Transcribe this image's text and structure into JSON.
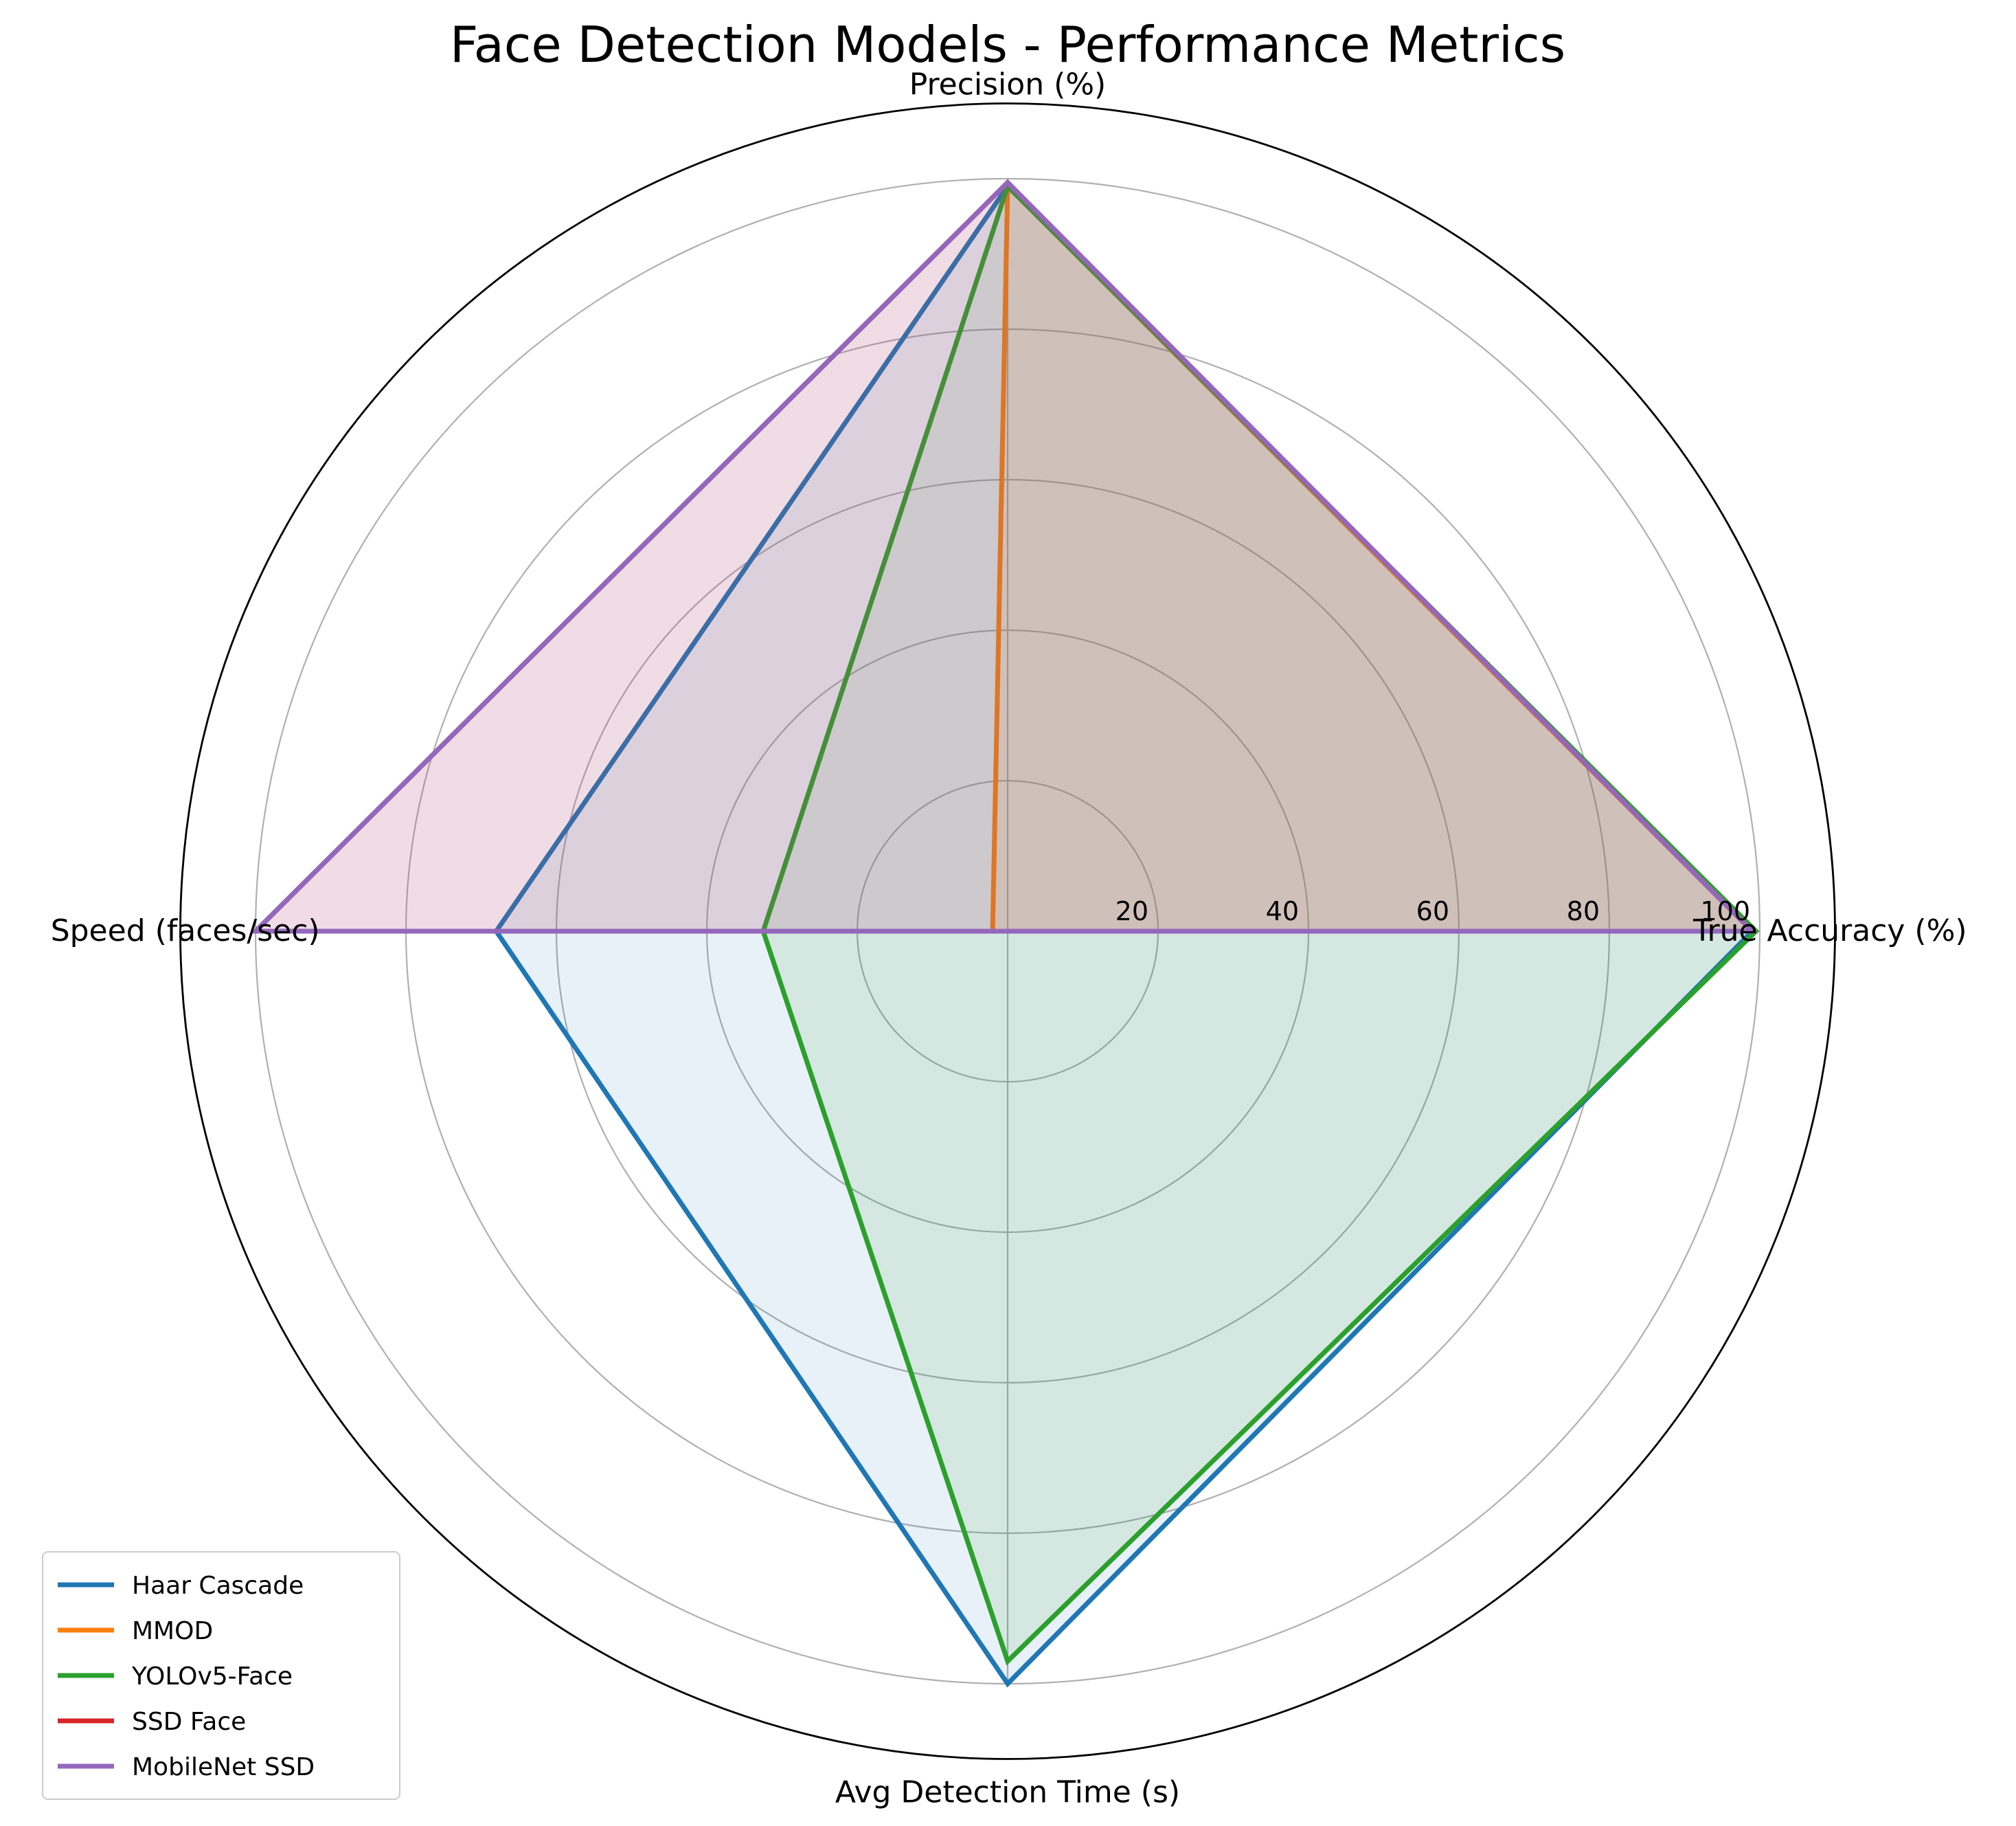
{
  "chart_data": {
    "type": "radar",
    "title": "Face Detection Models - Performance Metrics",
    "axes": [
      "True Accuracy (%)",
      "Precision (%)",
      "Speed (faces/sec)",
      "Avg Detection Time (s)"
    ],
    "rlim": [
      0,
      100
    ],
    "radial_ticks": [
      20,
      40,
      60,
      80,
      100
    ],
    "grid": true,
    "legend_position": "lower-left",
    "series": [
      {
        "name": "Haar Cascade",
        "color": "#1f77b4",
        "values": [
          99,
          99,
          68,
          100
        ]
      },
      {
        "name": "MMOD",
        "color": "#ff7f0e",
        "values": [
          99,
          99,
          2,
          0
        ]
      },
      {
        "name": "YOLOv5-Face",
        "color": "#2ca02c",
        "values": [
          99.5,
          99,
          32.5,
          97
        ]
      },
      {
        "name": "SSD Face",
        "color": "#d62728",
        "values": [
          99,
          99.5,
          100,
          0
        ]
      },
      {
        "name": "MobileNet SSD",
        "color": "#9467bd",
        "values": [
          99,
          99.5,
          100,
          0
        ]
      }
    ]
  }
}
